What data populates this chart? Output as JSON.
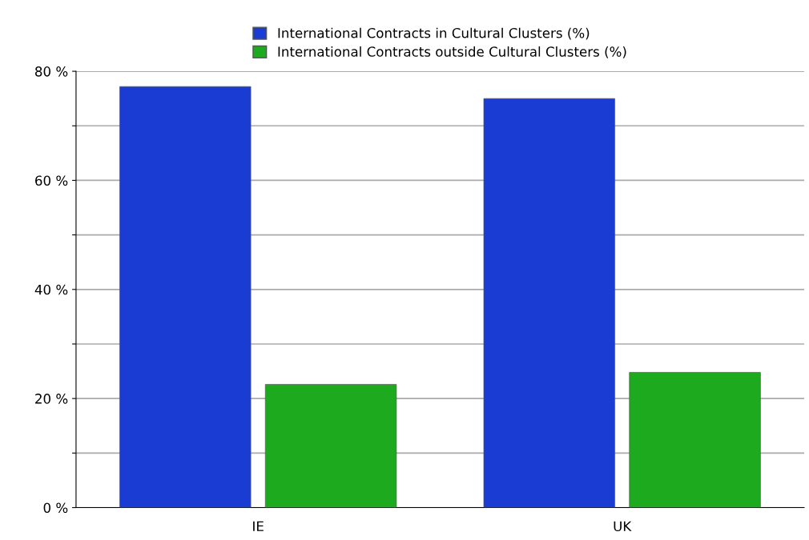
{
  "chart_data": {
    "type": "bar",
    "categories": [
      "IE",
      "UK"
    ],
    "series": [
      {
        "name": "International Contracts in Cultural Clusters (%)",
        "color": "#1a3cd2",
        "values": [
          77.2,
          75.0
        ]
      },
      {
        "name": "International Contracts outside Cultural Clusters (%)",
        "color": "#1eaa1e",
        "values": [
          22.6,
          24.8
        ]
      }
    ],
    "ylim": [
      0,
      80
    ],
    "yticks": [
      {
        "value": 0,
        "label": "0 %"
      },
      {
        "value": 10,
        "label": null
      },
      {
        "value": 20,
        "label": "20 %"
      },
      {
        "value": 30,
        "label": null
      },
      {
        "value": 40,
        "label": "40 %"
      },
      {
        "value": 50,
        "label": null
      },
      {
        "value": 60,
        "label": "60 %"
      },
      {
        "value": 70,
        "label": null
      },
      {
        "value": 80,
        "label": "80 %"
      }
    ],
    "grid": "y",
    "legend": "top"
  }
}
